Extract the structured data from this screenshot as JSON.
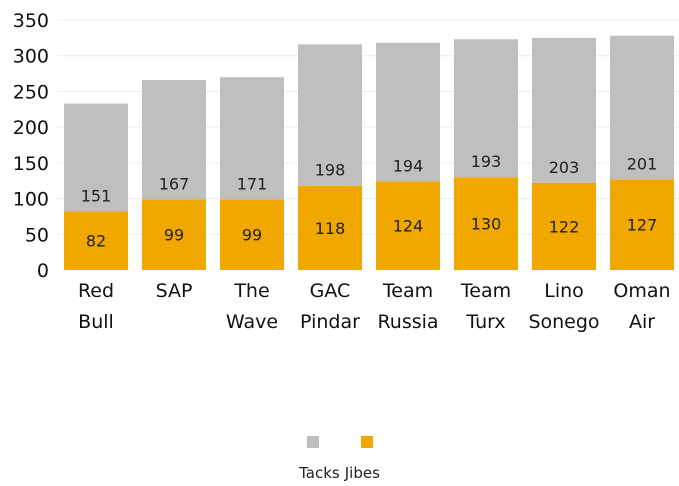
{
  "chart_data": {
    "type": "bar",
    "stacked": true,
    "categories": [
      [
        "Red",
        "Bull"
      ],
      [
        "SAP"
      ],
      [
        "The",
        "Wave"
      ],
      [
        "GAC",
        "Pindar"
      ],
      [
        "Team",
        "Russia"
      ],
      [
        "Team",
        "Turx"
      ],
      [
        "Lino",
        "Sonego"
      ],
      [
        "Oman",
        "Air"
      ]
    ],
    "series": [
      {
        "name": "Jibes",
        "color": "#F0A800",
        "values": [
          82,
          99,
          99,
          118,
          124,
          130,
          122,
          127
        ]
      },
      {
        "name": "Tacks",
        "color": "#BFBFBF",
        "values": [
          151,
          167,
          171,
          198,
          194,
          193,
          203,
          201
        ]
      }
    ],
    "ylim": [
      0,
      350
    ],
    "yticks": [
      0,
      50,
      100,
      150,
      200,
      250,
      300,
      350
    ],
    "grid": true,
    "legend_position": "bottom",
    "legend_order": [
      "Tacks",
      "Jibes"
    ]
  }
}
